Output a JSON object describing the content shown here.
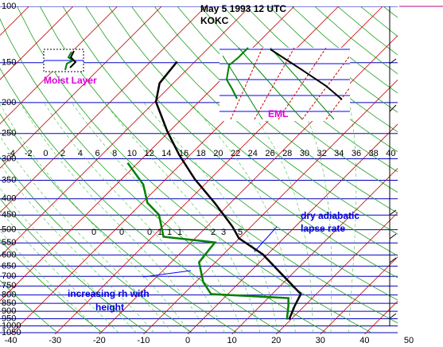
{
  "chart_data": {
    "type": "skewt",
    "title": "May 5  1993 12 UTC",
    "subtitle": "KOKC",
    "ylim": [
      100,
      1050
    ],
    "log_y": true,
    "yticks": [
      100,
      150,
      200,
      250,
      300,
      350,
      400,
      450,
      500,
      550,
      600,
      650,
      700,
      750,
      800,
      850,
      900,
      950,
      1000,
      1050
    ],
    "xlim": [
      -40,
      50
    ],
    "xticks": [
      -40,
      -30,
      -20,
      -10,
      0,
      10,
      20,
      30,
      40,
      50
    ],
    "upper_scale": [
      -4,
      -2,
      0,
      2,
      4,
      6,
      8,
      10,
      12,
      14,
      16,
      18,
      20,
      22,
      24,
      26,
      28,
      30,
      32,
      34,
      36,
      38,
      40
    ],
    "mixing_labels": [
      "0",
      "0",
      "0",
      "1",
      "1",
      "1",
      "2",
      "3",
      "5"
    ],
    "series": [
      {
        "name": "temperature",
        "color": "#000000",
        "x": [
          19.6,
          17.8,
          16.5,
          -1.1,
          -10.1,
          -14.2,
          -23.6,
          -33.5,
          -42.4,
          -50.5,
          -59.7,
          -63.1,
          -64.0
        ],
        "values": [
          955,
          867,
          795,
          597,
          532,
          489,
          412,
          347,
          292,
          246,
          199,
          174,
          149
        ]
      },
      {
        "name": "dewpoint",
        "color": "#008000",
        "x": [
          19.1,
          16.4,
          14.6,
          -3.8,
          -8.3,
          -13.7,
          -14.6,
          -27.5,
          -33.5,
          -38.8,
          -43.9,
          -52.3
        ],
        "values": [
          955,
          867,
          818,
          795,
          729,
          632,
          548,
          526,
          449,
          412,
          361,
          309
        ]
      }
    ],
    "annotations": [
      "Moist Layer",
      "EML",
      "dry adiabatic",
      "lapse rate",
      "increasing rh with",
      "height"
    ]
  }
}
